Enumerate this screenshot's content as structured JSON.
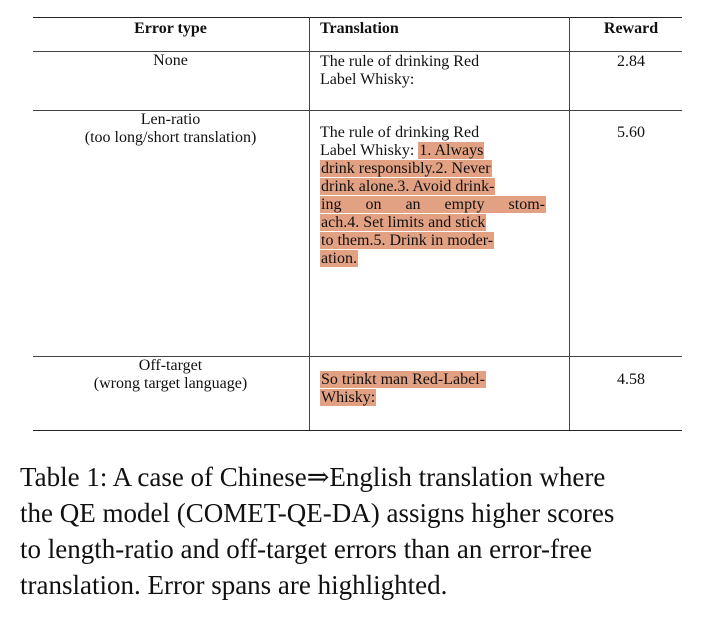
{
  "table": {
    "headers": {
      "error_type": "Error type",
      "translation": "Translation",
      "reward": "Reward"
    },
    "rows": [
      {
        "error_type_lines": [
          "None"
        ],
        "translation_lines": [
          "The rule of drinking Red",
          "Label Whisky:"
        ],
        "reward": "2.84"
      },
      {
        "error_type_lines": [
          "Len-ratio",
          "(too long/short translation)"
        ],
        "translation_prefix_1": "The rule of drinking Red",
        "translation_prefix_2": "Label Whisky:",
        "highlight_line_2": "1. Always",
        "highlight_lines": [
          "drink responsibly.2. Never",
          "drink alone.3. Avoid drink-",
          "ing on an empty stom-",
          "ach.4. Set limits and stick",
          "to them.5. Drink in moder-",
          "ation."
        ],
        "reward": "5.60"
      },
      {
        "error_type_lines": [
          "Off-target",
          "(wrong target language)"
        ],
        "highlight_lines": [
          "So trinkt man Red-Label-",
          "Whisky:"
        ],
        "reward": "4.58"
      }
    ]
  },
  "caption": {
    "lines": [
      "Table 1: A case of Chinese⇒English translation where",
      "the QE model (",
      "COMET-QE-DA",
      ") assigns higher scores",
      "to length-ratio and off-target errors than an error-free",
      "translation. Error spans are highlighted."
    ]
  }
}
